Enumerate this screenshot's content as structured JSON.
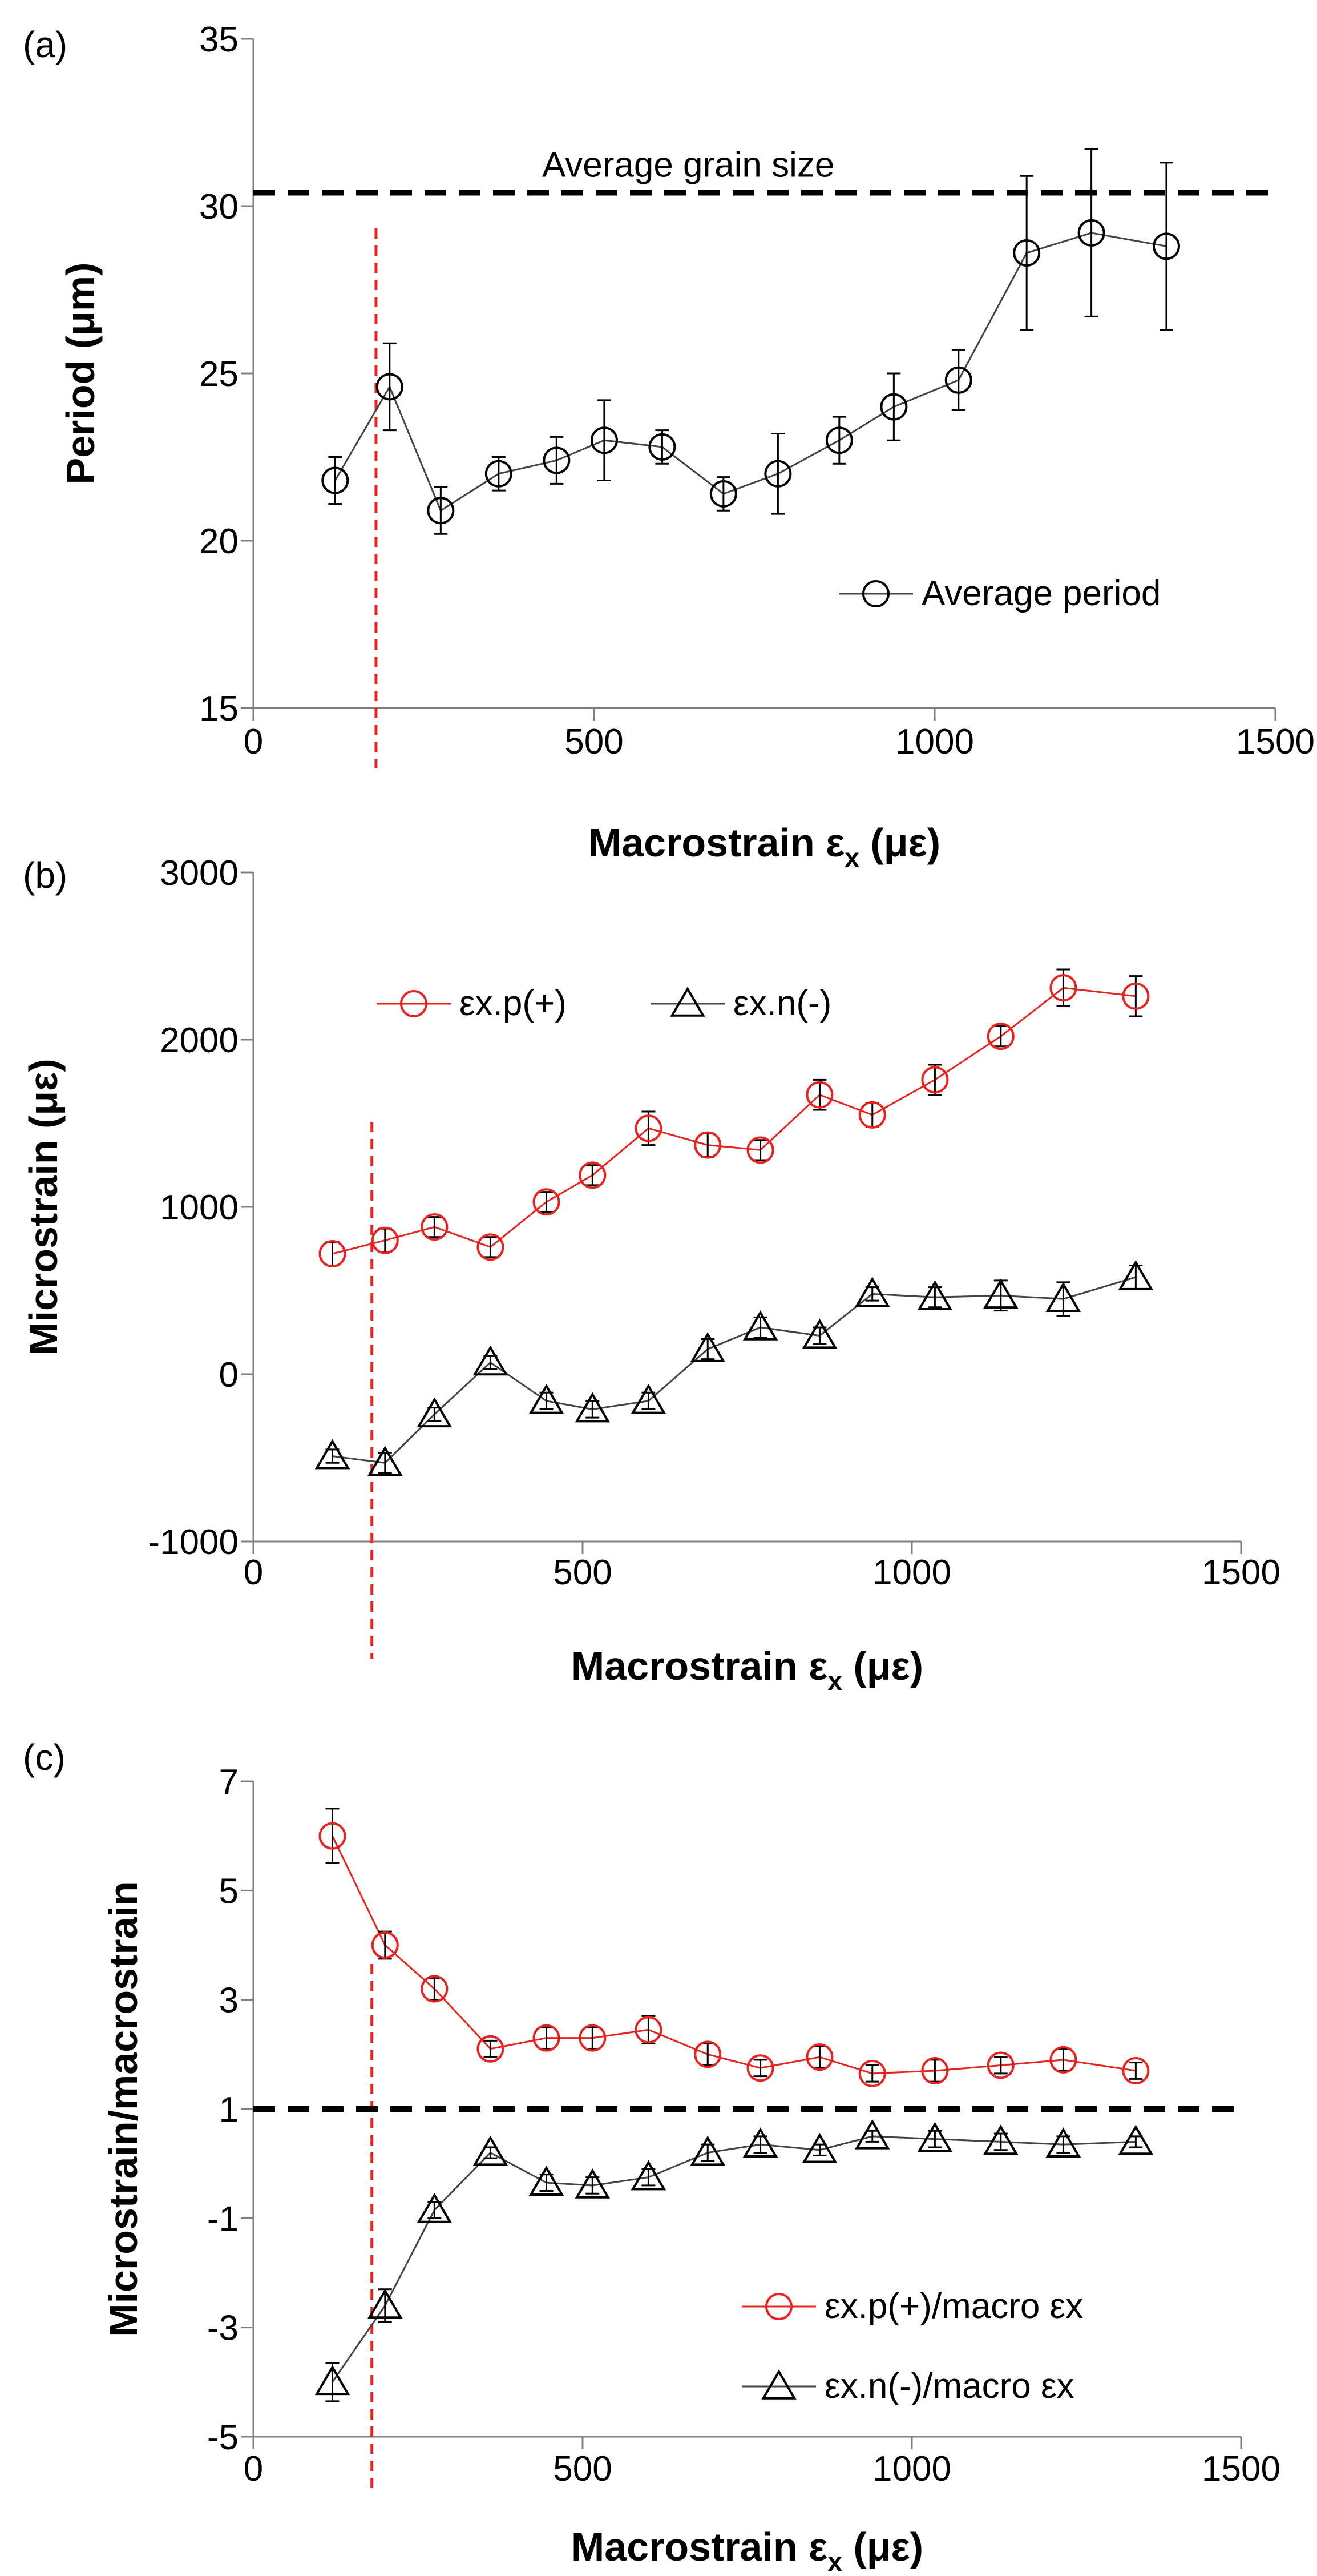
{
  "chart_data": [
    {
      "panel_label": "(a)",
      "type": "line",
      "xlabel": "Macrostrain ε",
      "xlabel_sub": "x",
      "xlabel_unit": " (με)",
      "ylabel": "Period (μm)",
      "xlim": [
        0,
        1500
      ],
      "ylim": [
        15,
        35
      ],
      "xticks": [
        0,
        500,
        1000,
        1500
      ],
      "yticks": [
        15,
        20,
        25,
        30,
        35
      ],
      "vline_x": 180,
      "hline": {
        "y": 30.4,
        "label": "Average grain size"
      },
      "legend_position": "lower-right",
      "series": [
        {
          "name": "Average period",
          "color": "#000000",
          "marker": "circle",
          "x": [
            120,
            200,
            275,
            360,
            445,
            515,
            600,
            690,
            770,
            860,
            940,
            1035,
            1135,
            1230,
            1340
          ],
          "y": [
            21.8,
            24.6,
            20.9,
            22.0,
            22.4,
            23.0,
            22.8,
            21.4,
            22.0,
            23.0,
            24.0,
            24.8,
            28.6,
            29.2,
            28.8
          ],
          "err": [
            0.7,
            1.3,
            0.7,
            0.5,
            0.7,
            1.2,
            0.5,
            0.5,
            1.2,
            0.7,
            1.0,
            0.9,
            2.3,
            2.5,
            2.5
          ]
        }
      ]
    },
    {
      "panel_label": "(b)",
      "type": "line",
      "xlabel": "Macrostrain ε",
      "xlabel_sub": "x",
      "xlabel_unit": " (με)",
      "ylabel": "Microstrain (με)",
      "xlim": [
        0,
        1500
      ],
      "ylim": [
        -1000,
        3000
      ],
      "xticks": [
        0,
        500,
        1000,
        1500
      ],
      "yticks": [
        -1000,
        0,
        1000,
        2000,
        3000
      ],
      "vline_x": 180,
      "legend_position": "top-left",
      "series": [
        {
          "name": "εx.p(+)",
          "color": "#e8231f",
          "marker": "circle",
          "x": [
            120,
            200,
            275,
            360,
            445,
            515,
            600,
            690,
            770,
            860,
            940,
            1035,
            1135,
            1230,
            1340
          ],
          "y": [
            720,
            800,
            880,
            760,
            1030,
            1190,
            1470,
            1370,
            1340,
            1670,
            1550,
            1760,
            2020,
            2310,
            2260
          ],
          "err": [
            70,
            70,
            60,
            60,
            60,
            60,
            100,
            70,
            60,
            90,
            70,
            90,
            60,
            110,
            120
          ]
        },
        {
          "name": "εx.n(-)",
          "color": "#000000",
          "marker": "triangle",
          "x": [
            120,
            200,
            275,
            360,
            445,
            515,
            600,
            690,
            770,
            860,
            940,
            1035,
            1135,
            1230,
            1340
          ],
          "y": [
            -490,
            -530,
            -240,
            70,
            -160,
            -210,
            -160,
            150,
            280,
            230,
            480,
            460,
            470,
            450,
            580
          ],
          "err": [
            40,
            60,
            40,
            40,
            50,
            50,
            50,
            60,
            60,
            50,
            40,
            60,
            90,
            100,
            70
          ]
        }
      ]
    },
    {
      "panel_label": "(c)",
      "type": "line",
      "xlabel": "Macrostrain ε",
      "xlabel_sub": "x",
      "xlabel_unit": " (με)",
      "ylabel": "Microstrain/macrostrain",
      "xlim": [
        0,
        1500
      ],
      "ylim": [
        -5,
        7
      ],
      "xticks": [
        0,
        500,
        1000,
        1500
      ],
      "yticks": [
        -5,
        -3,
        -1,
        1,
        3,
        5,
        7
      ],
      "vline_x": 180,
      "hline": {
        "y": 1,
        "label": ""
      },
      "legend_position": "lower-right",
      "series": [
        {
          "name": "εx.p(+)/macro εx",
          "color": "#e8231f",
          "marker": "circle",
          "x": [
            120,
            200,
            275,
            360,
            445,
            515,
            600,
            690,
            770,
            860,
            940,
            1035,
            1135,
            1230,
            1340
          ],
          "y": [
            6.0,
            4.0,
            3.2,
            2.1,
            2.3,
            2.3,
            2.45,
            2.0,
            1.75,
            1.95,
            1.65,
            1.7,
            1.8,
            1.9,
            1.7
          ],
          "err": [
            0.5,
            0.25,
            0.2,
            0.15,
            0.2,
            0.2,
            0.25,
            0.2,
            0.15,
            0.2,
            0.15,
            0.2,
            0.15,
            0.2,
            0.15
          ]
        },
        {
          "name": "εx.n(-)/macro εx",
          "color": "#000000",
          "marker": "triangle",
          "x": [
            120,
            200,
            275,
            360,
            445,
            515,
            600,
            690,
            770,
            860,
            940,
            1035,
            1135,
            1230,
            1340
          ],
          "y": [
            -4.0,
            -2.6,
            -0.85,
            0.2,
            -0.35,
            -0.4,
            -0.25,
            0.2,
            0.35,
            0.25,
            0.5,
            0.45,
            0.4,
            0.35,
            0.4
          ],
          "err": [
            0.35,
            0.3,
            0.15,
            0.1,
            0.15,
            0.15,
            0.15,
            0.15,
            0.15,
            0.1,
            0.1,
            0.15,
            0.15,
            0.15,
            0.1
          ]
        }
      ]
    }
  ]
}
